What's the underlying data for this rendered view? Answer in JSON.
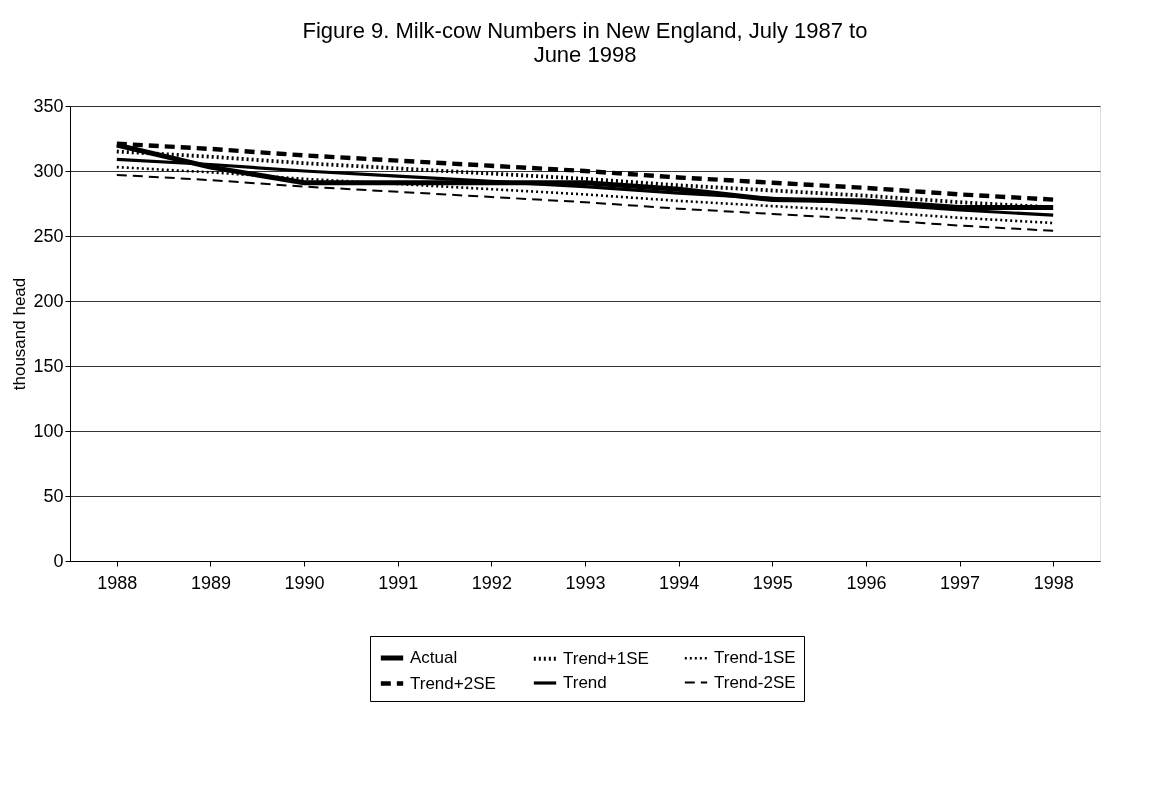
{
  "chart_data": {
    "type": "line",
    "title": [
      "Figure 9.  Milk-cow Numbers in New England, July 1987 to",
      "June 1998"
    ],
    "ylabel": "thousand head",
    "categories": [
      "1988",
      "1989",
      "1990",
      "1991",
      "1992",
      "1993",
      "1994",
      "1995",
      "1996",
      "1997",
      "1998"
    ],
    "ylim": [
      0,
      350
    ],
    "yticks": [
      0,
      50,
      100,
      150,
      200,
      250,
      300,
      350
    ],
    "grid": "y",
    "legend": "bottom",
    "marker": "none",
    "series": [
      {
        "name": "Actual",
        "color": "#000000",
        "line_style": "solid",
        "values": [
          320,
          303,
          291,
          291,
          291,
          291,
          286,
          278,
          277,
          272,
          272
        ]
      },
      {
        "name": "Trend+2SE",
        "color": "#000000",
        "line_style": "dashed",
        "values": [
          321,
          317,
          312,
          308,
          304,
          300,
          295,
          291,
          287,
          282,
          278
        ]
      },
      {
        "name": "Trend+1SE",
        "color": "#000000",
        "line_style": "dotted",
        "values": [
          315,
          311,
          306,
          302,
          298,
          294,
          289,
          285,
          281,
          276,
          272
        ]
      },
      {
        "name": "Trend",
        "color": "#000000",
        "line_style": "solid",
        "values": [
          309,
          305,
          300,
          296,
          292,
          288,
          283,
          279,
          275,
          270,
          266
        ]
      },
      {
        "name": "Trend-1SE",
        "color": "#000000",
        "line_style": "dotted",
        "values": [
          303,
          299,
          294,
          290,
          286,
          282,
          277,
          273,
          269,
          264,
          260
        ]
      },
      {
        "name": "Trend-2SE",
        "color": "#000000",
        "line_style": "dashed",
        "values": [
          297,
          293,
          288,
          284,
          280,
          276,
          271,
          267,
          263,
          258,
          254
        ]
      }
    ]
  }
}
